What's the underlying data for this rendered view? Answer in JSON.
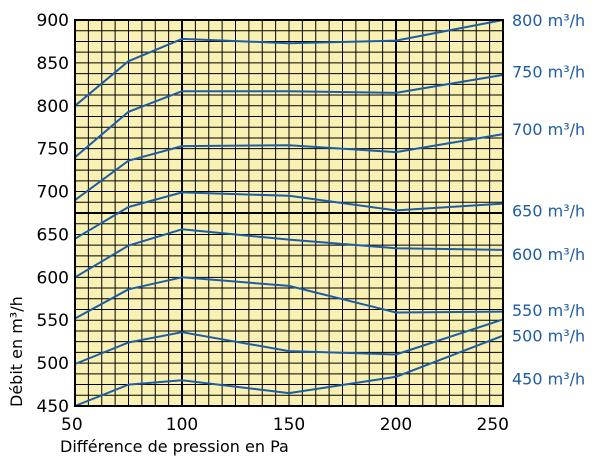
{
  "chart_data": {
    "type": "line",
    "title": "",
    "xlabel": "Différence de pression en Pa",
    "ylabel": "Débit en m³/h",
    "xlim": [
      50,
      250
    ],
    "ylim": [
      450,
      900
    ],
    "x_ticks": [
      "50",
      "100",
      "150",
      "200",
      "250"
    ],
    "y_ticks": [
      "450",
      "500",
      "550",
      "600",
      "650",
      "700",
      "750",
      "800",
      "850",
      "900"
    ],
    "grid": true,
    "legend": "labels at right edge",
    "colors": {
      "background": "#f9f1b4",
      "line": "#1e5ca3",
      "grid": "#000000",
      "label": "#1e5ca3"
    },
    "series": [
      {
        "name": "800 m³/h",
        "points": [
          [
            50,
            800
          ],
          [
            75,
            852
          ],
          [
            100,
            878
          ],
          [
            150,
            873
          ],
          [
            200,
            876
          ],
          [
            250,
            900
          ]
        ]
      },
      {
        "name": "750 m³/h",
        "points": [
          [
            50,
            740
          ],
          [
            75,
            793
          ],
          [
            100,
            817
          ],
          [
            150,
            817
          ],
          [
            200,
            815
          ],
          [
            250,
            836
          ]
        ]
      },
      {
        "name": "700 m³/h",
        "points": [
          [
            50,
            690
          ],
          [
            75,
            736
          ],
          [
            100,
            753
          ],
          [
            150,
            754
          ],
          [
            200,
            746
          ],
          [
            250,
            767
          ]
        ]
      },
      {
        "name": "650 m³/h",
        "points": [
          [
            50,
            645
          ],
          [
            75,
            682
          ],
          [
            100,
            699
          ],
          [
            150,
            695
          ],
          [
            200,
            678
          ],
          [
            250,
            686
          ]
        ]
      },
      {
        "name": "600 m³/h",
        "points": [
          [
            50,
            600
          ],
          [
            75,
            637
          ],
          [
            100,
            656
          ],
          [
            150,
            644
          ],
          [
            200,
            634
          ],
          [
            250,
            632
          ]
        ]
      },
      {
        "name": "550 m³/h",
        "points": [
          [
            50,
            552
          ],
          [
            75,
            586
          ],
          [
            100,
            600
          ],
          [
            150,
            590
          ],
          [
            200,
            559
          ],
          [
            250,
            560
          ]
        ]
      },
      {
        "name": "500 m³/h",
        "points": [
          [
            50,
            499
          ],
          [
            75,
            524
          ],
          [
            100,
            536
          ],
          [
            150,
            514
          ],
          [
            200,
            510
          ],
          [
            250,
            551
          ]
        ]
      },
      {
        "name": "450 m³/h",
        "points": [
          [
            50,
            450
          ],
          [
            75,
            475
          ],
          [
            100,
            480
          ],
          [
            150,
            465
          ],
          [
            200,
            484
          ],
          [
            250,
            532
          ]
        ]
      }
    ],
    "label_values": [
      900,
      840,
      773,
      678,
      627,
      562,
      532,
      482
    ]
  }
}
